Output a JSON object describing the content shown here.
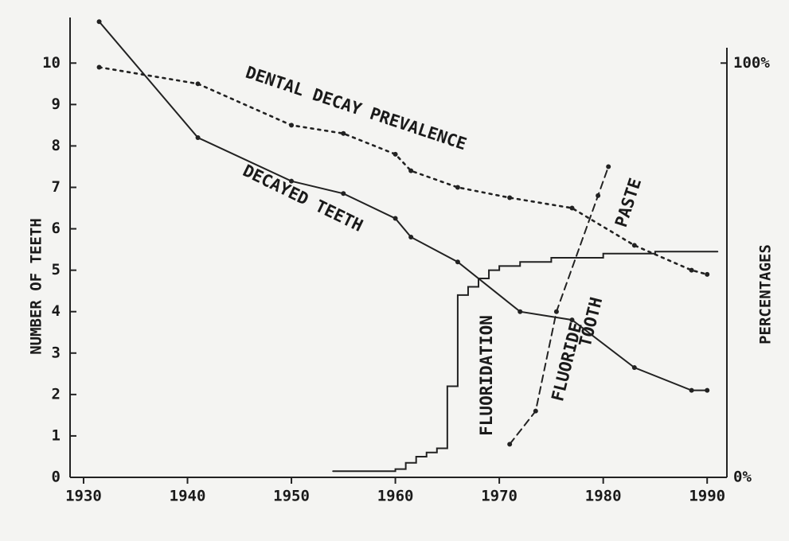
{
  "chart_data": {
    "type": "line",
    "ylabel": "NUMBER OF TEETH",
    "y2label": "PERCENTAGES",
    "xlim": [
      1928.7,
      1991.9
    ],
    "xticks": [
      1930,
      1940,
      1950,
      1960,
      1970,
      1980,
      1990
    ],
    "ylim": [
      0,
      11.1
    ],
    "yticks": [
      0,
      1,
      2,
      3,
      4,
      5,
      6,
      7,
      8,
      9,
      10
    ],
    "y2lim": [
      0,
      111
    ],
    "y2ticks": [
      {
        "value": 0,
        "label": "0%"
      },
      {
        "value": 100,
        "label": "100%"
      }
    ],
    "annotations": [
      "DENTAL DECAY PREVALENCE",
      "DECAYED TEETH",
      "FLUORIDATION",
      "FLUORIDE",
      "TOOTH",
      "PASTE"
    ],
    "series": [
      {
        "color": "#222",
        "style": "solid",
        "axis": "y",
        "x": [
          1931.5,
          1941,
          1950,
          1955,
          1960,
          1961.5,
          1966,
          1972,
          1977,
          1983,
          1988.5,
          1990
        ],
        "values": [
          11.0,
          8.2,
          7.15,
          6.85,
          6.25,
          5.8,
          5.2,
          4.0,
          3.8,
          2.65,
          2.1,
          2.1
        ]
      },
      {
        "color": "#222",
        "style": "dotted",
        "axis": "y2",
        "x": [
          1931.5,
          1941,
          1950,
          1955,
          1960,
          1961.5,
          1966,
          1971,
          1977,
          1983,
          1988.5,
          1990
        ],
        "values": [
          99,
          95,
          85,
          83,
          78,
          74,
          70,
          67.5,
          65,
          56,
          50,
          49
        ]
      },
      {
        "color": "#222",
        "style": "dashed",
        "axis": "y2",
        "x": [
          1971,
          1973.5,
          1975.5,
          1979.5,
          1980.5
        ],
        "values": [
          8,
          16,
          40,
          68,
          75
        ]
      },
      {
        "color": "#222",
        "style": "solid",
        "step": true,
        "axis": "y2",
        "x": [
          1954,
          1960,
          1961,
          1962,
          1963,
          1964,
          1965,
          1966,
          1967,
          1968,
          1969,
          1970,
          1972,
          1975,
          1980,
          1985,
          1991
        ],
        "values": [
          1.5,
          2,
          3.5,
          5,
          6,
          7,
          22,
          44,
          46,
          48,
          50,
          51,
          52,
          53,
          54,
          54.5,
          54.5
        ]
      }
    ]
  }
}
